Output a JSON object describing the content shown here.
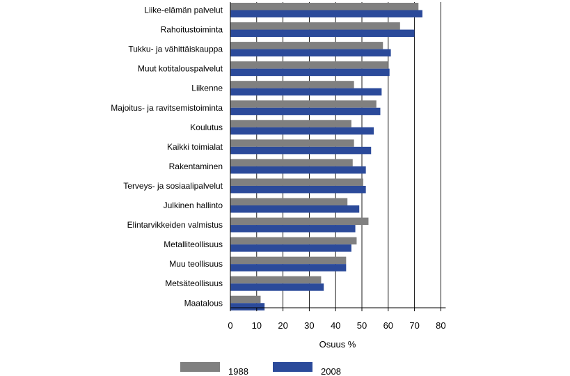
{
  "chart_data": {
    "type": "bar",
    "orientation": "horizontal",
    "categories": [
      "Liike-elämän palvelut",
      "Rahoitustoiminta",
      "Tukku- ja vähittäiskauppa",
      "Muut kotitalouspalvelut",
      "Liikenne",
      "Majoitus- ja ravitsemistoiminta",
      "Koulutus",
      "Kaikki toimialat",
      "Rakentaminen",
      "Terveys- ja sosiaalipalvelut",
      "Julkinen hallinto",
      "Elintarvikkeiden valmistus",
      "Metalliteollisuus",
      "Muu teollisuus",
      "Metsäteollisuus",
      "Maatalous"
    ],
    "series": [
      {
        "name": "1988",
        "color": "#808080",
        "values": [
          71.5,
          64.5,
          58,
          60,
          47,
          55.5,
          46,
          47,
          46.5,
          50.5,
          44.5,
          52.5,
          48,
          44,
          34.5,
          11.5
        ]
      },
      {
        "name": "2008",
        "color": "#2b4a9a",
        "values": [
          73,
          70,
          61,
          60.5,
          57.5,
          57,
          54.5,
          53.5,
          51.5,
          51.5,
          49,
          47.5,
          46,
          44,
          35.5,
          13
        ]
      }
    ],
    "xlabel": "Osuus %",
    "xlim": [
      0,
      80
    ],
    "xticks": [
      0,
      10,
      20,
      30,
      40,
      50,
      60,
      70,
      80
    ],
    "grid": "vertical",
    "legend_position": "bottom"
  }
}
